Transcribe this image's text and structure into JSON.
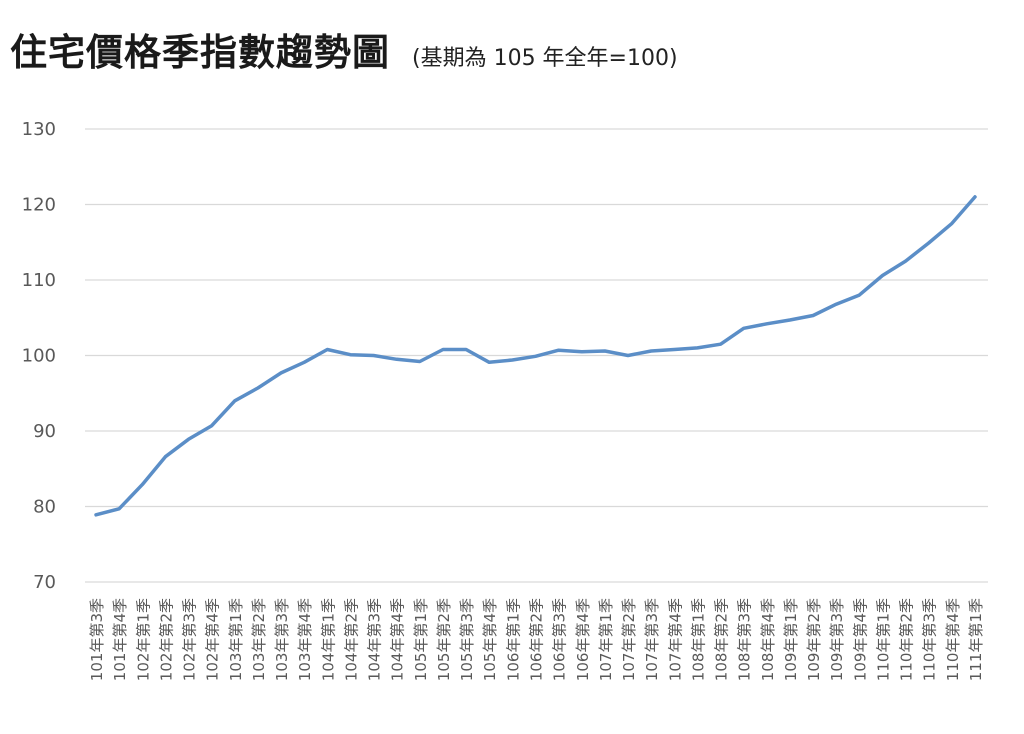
{
  "chart_data": {
    "type": "line",
    "title": "住宅價格季指數趨勢圖",
    "subtitle": "(基期為 105 年全年=100)",
    "xlabel": "",
    "ylabel": "",
    "ylim": [
      70,
      130
    ],
    "yticks": [
      70,
      80,
      90,
      100,
      110,
      120,
      130
    ],
    "grid": true,
    "line_color": "#5b8ec7",
    "categories": [
      "101年第3季",
      "101年第4季",
      "102年第1季",
      "102年第2季",
      "102年第3季",
      "102年第4季",
      "103年第1季",
      "103年第2季",
      "103年第3季",
      "103年第4季",
      "104年第1季",
      "104年第2季",
      "104年第3季",
      "104年第4季",
      "105年第1季",
      "105年第2季",
      "105年第3季",
      "105年第4季",
      "106年第1季",
      "106年第2季",
      "106年第3季",
      "106年第4季",
      "107年第1季",
      "107年第2季",
      "107年第3季",
      "107年第4季",
      "108年第1季",
      "108年第2季",
      "108年第3季",
      "108年第4季",
      "109年第1季",
      "109年第2季",
      "109年第3季",
      "109年第4季",
      "110年第1季",
      "110年第2季",
      "110年第3季",
      "110年第4季",
      "111年第1季"
    ],
    "series": [
      {
        "values": [
          78.9,
          79.7,
          82.9,
          86.6,
          88.9,
          90.7,
          94.0,
          95.7,
          97.7,
          99.1,
          100.8,
          100.1,
          100.0,
          99.5,
          99.2,
          100.8,
          100.8,
          99.1,
          99.4,
          99.9,
          100.7,
          100.5,
          100.6,
          100.0,
          100.6,
          100.8,
          101.0,
          101.5,
          103.6,
          104.2,
          104.7,
          105.3,
          106.8,
          108.0,
          110.6,
          112.5,
          114.9,
          117.5,
          121.0
        ]
      }
    ]
  }
}
